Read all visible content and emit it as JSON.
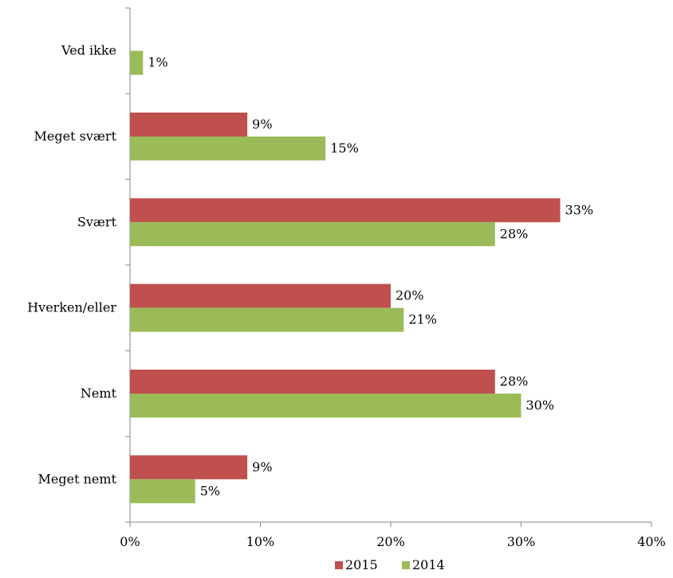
{
  "chart_data": {
    "type": "bar",
    "orientation": "horizontal",
    "categories": [
      "Ved ikke",
      "Meget svært",
      "Svært",
      "Hverken/eller",
      "Nemt",
      "Meget nemt"
    ],
    "series": [
      {
        "name": "2015",
        "color": "#c0504d",
        "values": [
          null,
          9,
          33,
          20,
          28,
          9
        ],
        "labels": [
          null,
          "9%",
          "33%",
          "20%",
          "28%",
          "9%"
        ]
      },
      {
        "name": "2014",
        "color": "#9bbb59",
        "values": [
          1,
          15,
          28,
          21,
          30,
          5
        ],
        "labels": [
          "1%",
          "15%",
          "28%",
          "21%",
          "30%",
          "5%"
        ]
      }
    ],
    "xlim": [
      0,
      40
    ],
    "x_ticks": [
      0,
      10,
      20,
      30,
      40
    ],
    "x_tick_labels": [
      "0%",
      "10%",
      "20%",
      "30%",
      "40%"
    ],
    "grid": false,
    "legend_position": "bottom",
    "title": "",
    "xlabel": "",
    "ylabel": ""
  }
}
